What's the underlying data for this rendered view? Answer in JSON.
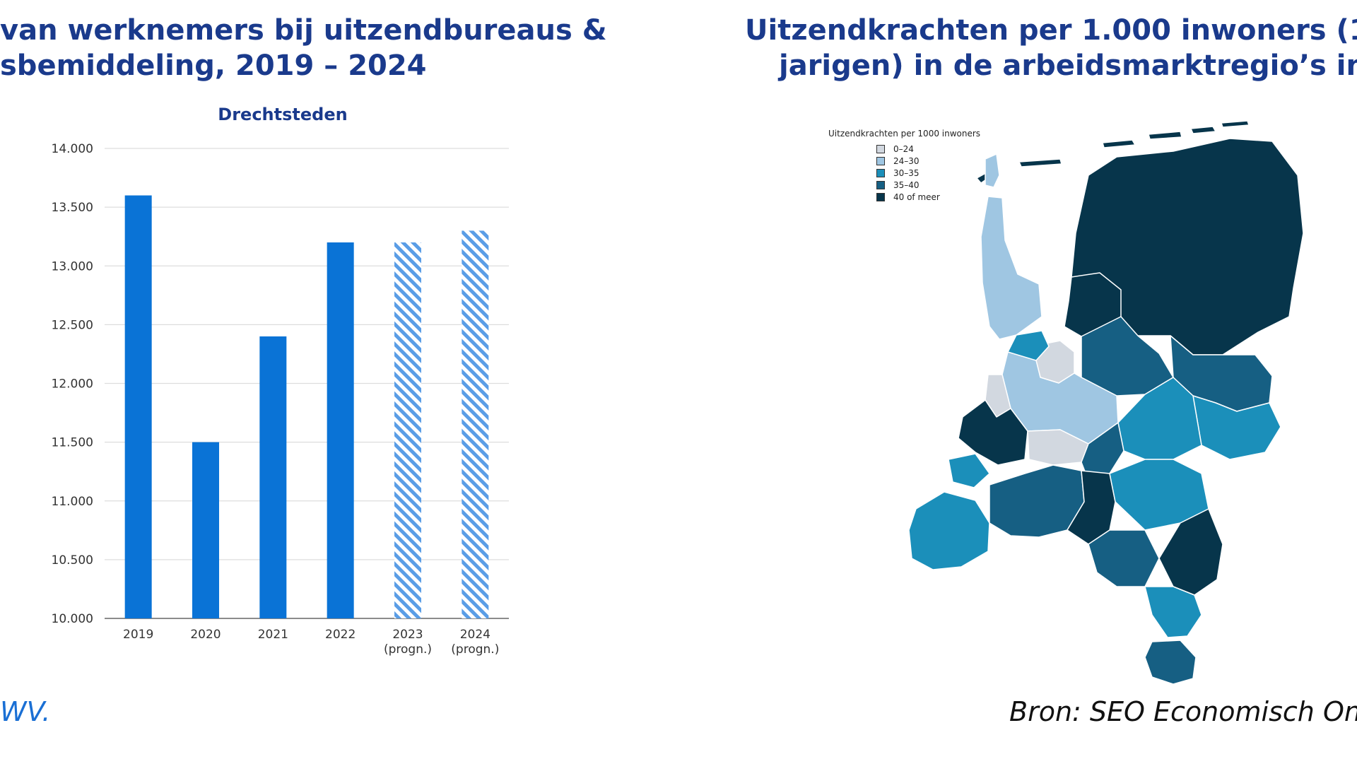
{
  "left_heading": {
    "line1": " van werknemers bij uitzendbureaus &",
    "line2": "sbemiddeling, 2019 – 2024"
  },
  "right_heading": {
    "line1": "Uitzendkrachten per 1.000 inwoners (1",
    "line2": "jarigen) in de arbeidsmarktregio’s in"
  },
  "chart_data": {
    "type": "bar",
    "title": "Drechtsteden",
    "categories": [
      "2019",
      "2020",
      "2021",
      "2022",
      "2023",
      "2024"
    ],
    "category_sublabels": [
      "",
      "",
      "",
      "",
      "(progn.)",
      "(progn.)"
    ],
    "values": [
      13600,
      11500,
      12400,
      13200,
      13200,
      13300
    ],
    "forecast": [
      false,
      false,
      false,
      false,
      true,
      true
    ],
    "ylim": [
      10000,
      14000
    ],
    "yticks": [
      10000,
      10500,
      11000,
      11500,
      12000,
      12500,
      13000,
      13500,
      14000
    ],
    "ytick_labels": [
      "10.000",
      "10.500",
      "11.000",
      "11.500",
      "12.000",
      "12.500",
      "13.000",
      "13.500",
      "14.000"
    ],
    "xlabel": "",
    "ylabel": "",
    "grid": true,
    "colors": {
      "actual": "#0a73d6",
      "forecast": "#5a9de6",
      "grid": "#dddddd",
      "axis": "#666666"
    }
  },
  "map": {
    "legend": {
      "title": "Uitzendkrachten per 1000 inwoners",
      "items": [
        {
          "label": "0–24",
          "color": "#d2d8e0"
        },
        {
          "label": "24–30",
          "color": "#9fc6e2"
        },
        {
          "label": "30–35",
          "color": "#1b8fba"
        },
        {
          "label": "35–40",
          "color": "#165f83"
        },
        {
          "label": "40 of meer",
          "color": "#07354b"
        }
      ]
    }
  },
  "left_source": "WV.",
  "right_source": "Bron: SEO Economisch Onde"
}
